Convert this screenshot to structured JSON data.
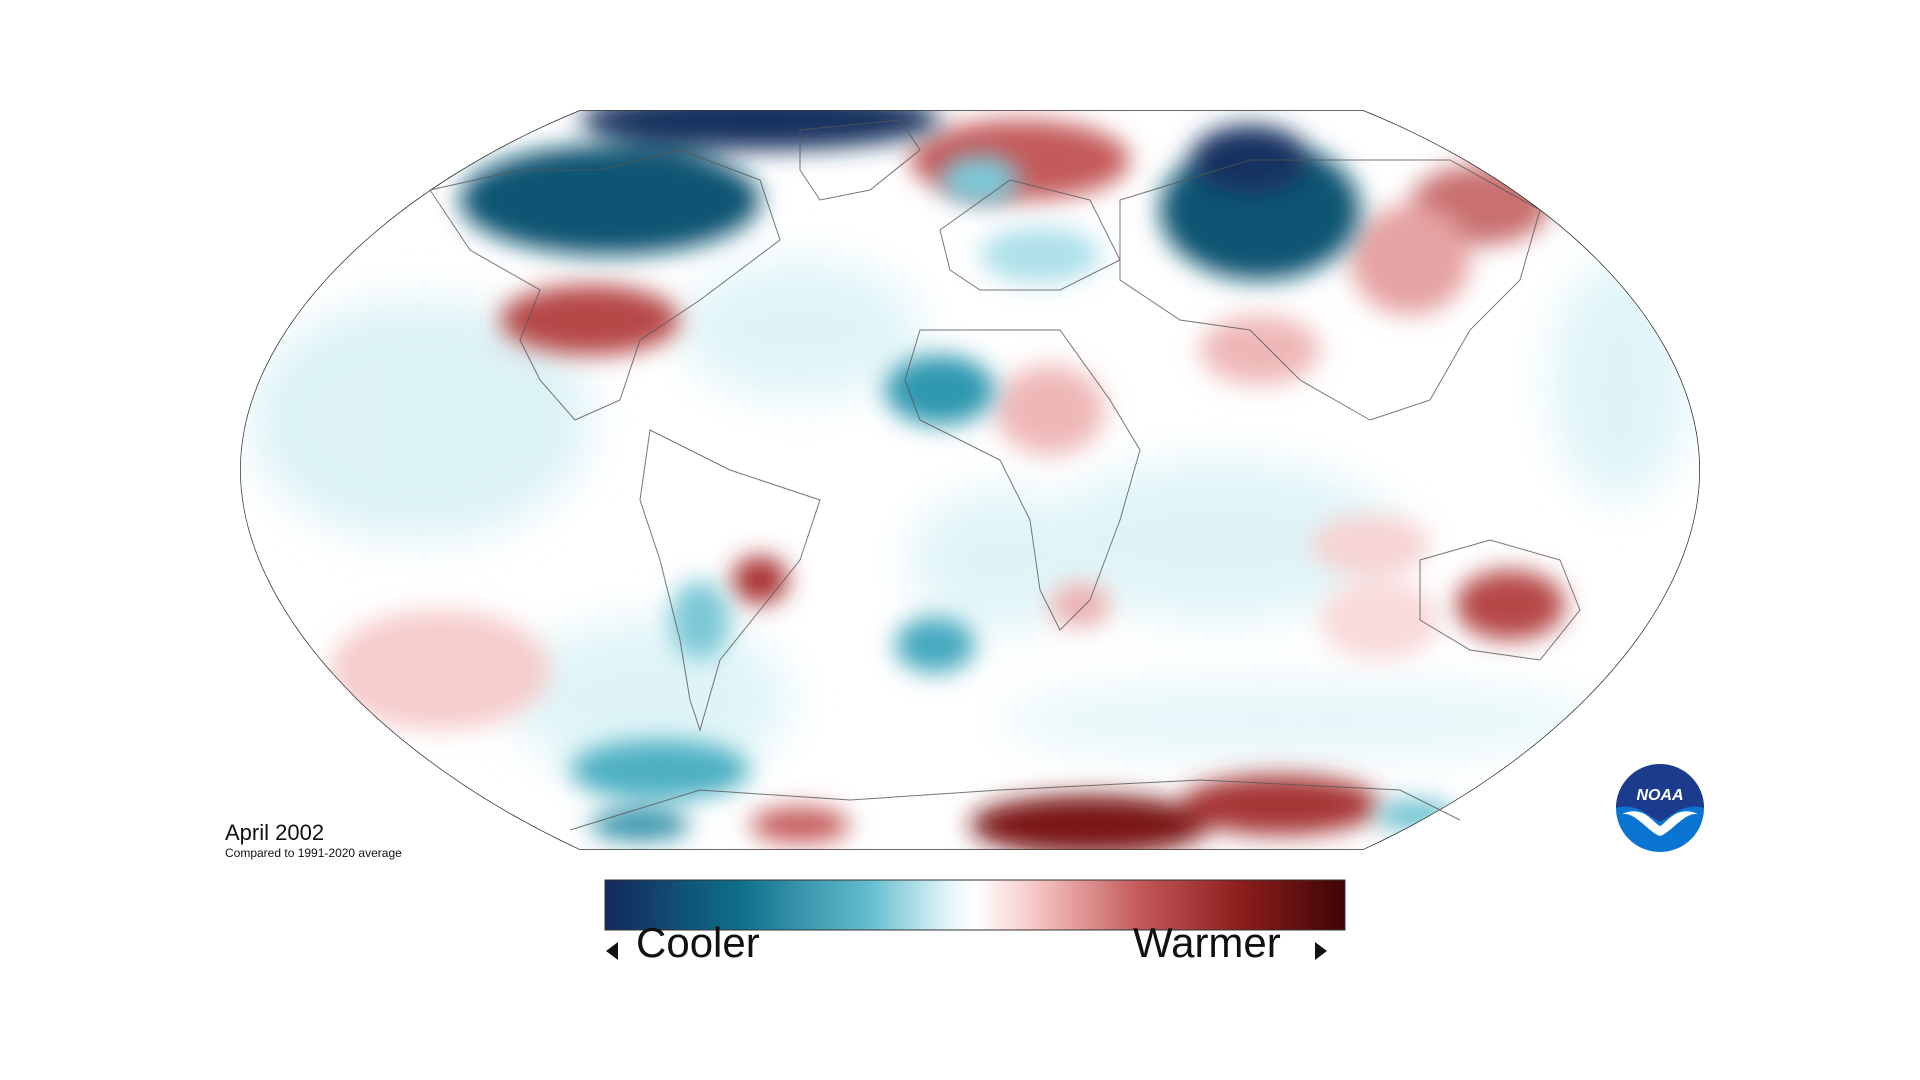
{
  "map": {
    "caption_title": "April 2002",
    "caption_subtitle": "Compared to 1991-2020 average"
  },
  "legend": {
    "cooler_label": "Cooler",
    "warmer_label": "Warmer",
    "colors": [
      "#14285e",
      "#0e6e8a",
      "#66bfd0",
      "#dff4f7",
      "#ffffff",
      "#f6c8c6",
      "#c55a5a",
      "#8c1d1d",
      "#3f0404"
    ]
  },
  "logo": {
    "text": "NOAA",
    "colors": {
      "dark": "#1d3b8c",
      "light": "#0a74d1"
    }
  },
  "anomaly_colors": {
    "warm": "#b22d2d",
    "warm_light": "#f0b3b3",
    "cold": "#0e5f7b",
    "cold_light": "#7fd0de"
  }
}
